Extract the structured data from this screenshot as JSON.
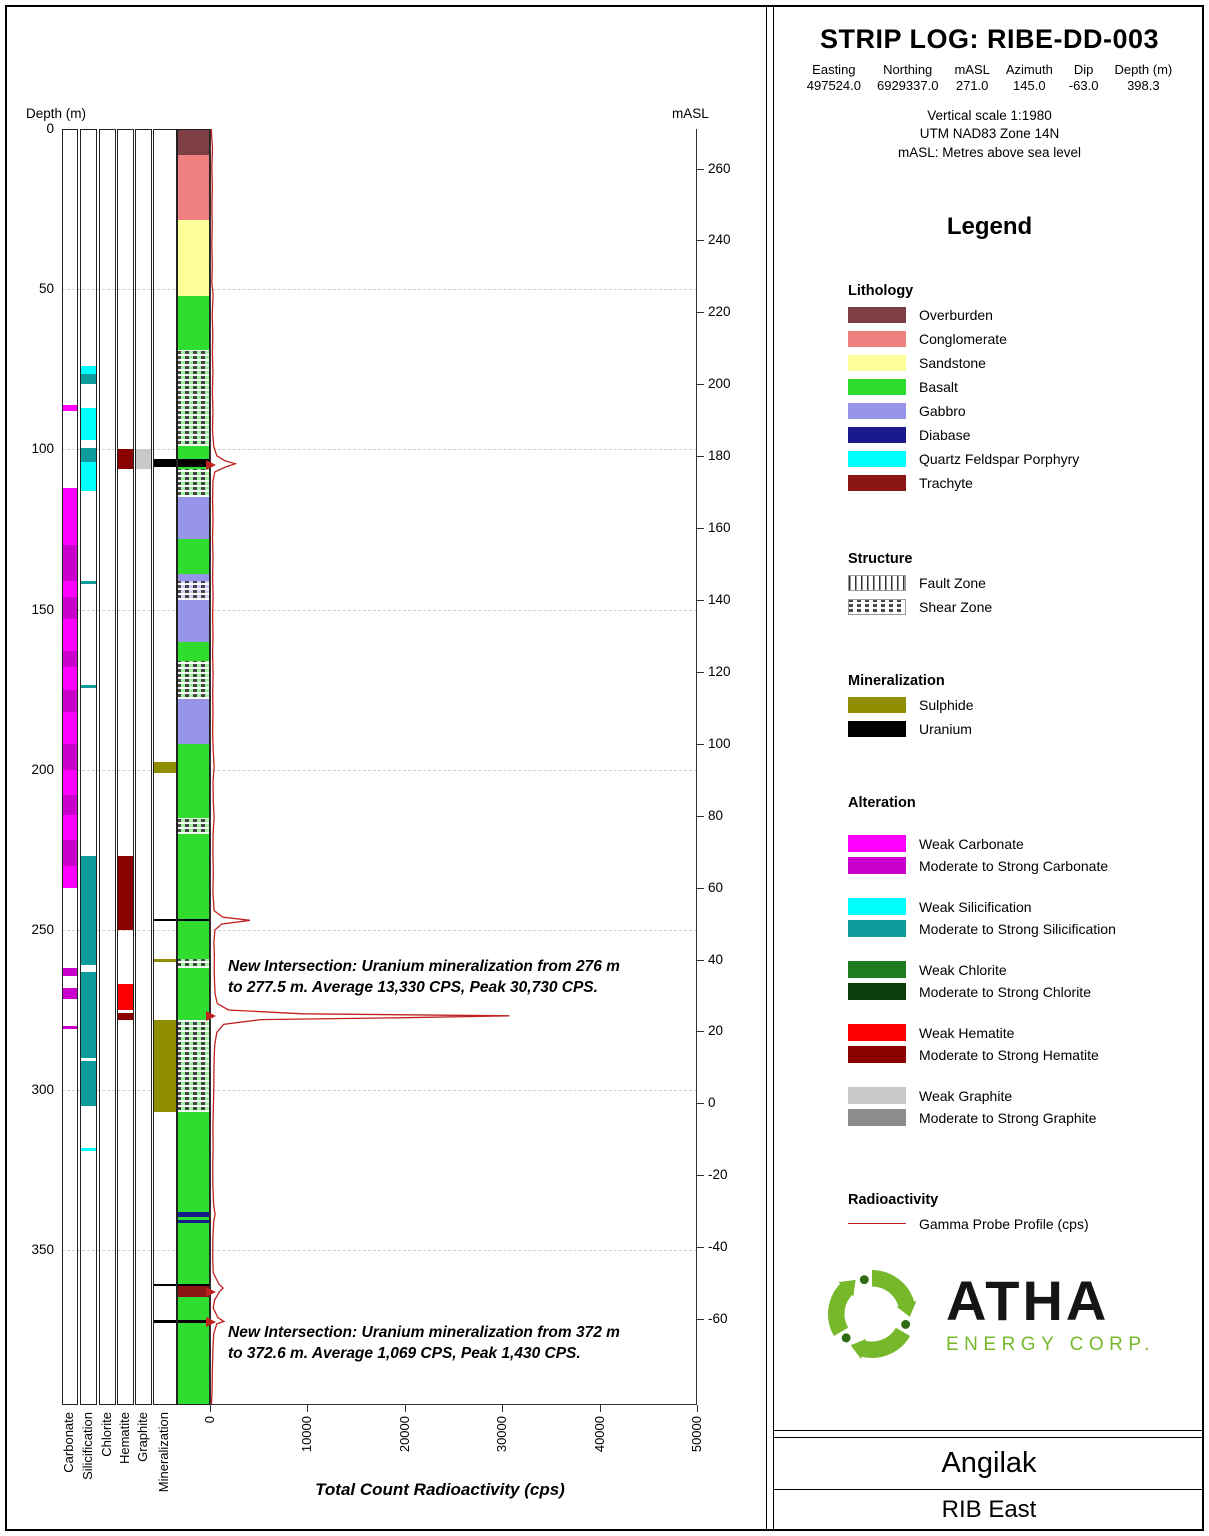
{
  "header": {
    "title": "STRIP LOG: RIBE-DD-003",
    "collar": [
      {
        "name": "Easting",
        "value": "497524.0"
      },
      {
        "name": "Northing",
        "value": "6929337.0"
      },
      {
        "name": "mASL",
        "value": "271.0"
      },
      {
        "name": "Azimuth",
        "value": "145.0"
      },
      {
        "name": "Dip",
        "value": "-63.0"
      },
      {
        "name": "Depth (m)",
        "value": "398.3"
      }
    ],
    "notes": [
      "Vertical scale 1:1980",
      "UTM NAD83 Zone 14N",
      "mASL: Metres above sea level"
    ]
  },
  "legend": {
    "title": "Legend",
    "lithology": {
      "title": "Lithology",
      "items": [
        {
          "label": "Overburden",
          "color": "#7E3F44"
        },
        {
          "label": "Conglomerate",
          "color": "#F08080"
        },
        {
          "label": "Sandstone",
          "color": "#FFFF99"
        },
        {
          "label": "Basalt",
          "color": "#2FDD2F"
        },
        {
          "label": "Gabbro",
          "color": "#9795E8"
        },
        {
          "label": "Diabase",
          "color": "#1A1A8F"
        },
        {
          "label": "Quartz Feldspar Porphyry",
          "color": "#00FFFF"
        },
        {
          "label": "Trachyte",
          "color": "#8B1515"
        }
      ]
    },
    "structure": {
      "title": "Structure",
      "items": [
        {
          "label": "Fault Zone",
          "pattern": "fault"
        },
        {
          "label": "Shear Zone",
          "pattern": "shear"
        }
      ]
    },
    "mineralization": {
      "title": "Mineralization",
      "items": [
        {
          "label": "Sulphide",
          "color": "#8E8E00"
        },
        {
          "label": "Uranium",
          "color": "#000000"
        }
      ]
    },
    "alteration": {
      "title": "Alteration",
      "groups": [
        {
          "name": "Carbonate",
          "weak": {
            "label": "Weak Carbonate",
            "color": "#FF00FF"
          },
          "strong": {
            "label": "Moderate to Strong Carbonate",
            "color": "#CC00CC"
          }
        },
        {
          "name": "Silicification",
          "weak": {
            "label": "Weak Silicification",
            "color": "#00FFFF"
          },
          "strong": {
            "label": "Moderate to Strong Silicification",
            "color": "#0E9B9B"
          }
        },
        {
          "name": "Chlorite",
          "weak": {
            "label": "Weak Chlorite",
            "color": "#1E7B1E"
          },
          "strong": {
            "label": "Moderate to Strong Chlorite",
            "color": "#0A3D0A"
          }
        },
        {
          "name": "Hematite",
          "weak": {
            "label": "Weak Hematite",
            "color": "#FF0000"
          },
          "strong": {
            "label": "Moderate to Strong Hematite",
            "color": "#8B0000"
          }
        },
        {
          "name": "Graphite",
          "weak": {
            "label": "Weak Graphite",
            "color": "#C8C8C8"
          },
          "strong": {
            "label": "Moderate to Strong Graphite",
            "color": "#8C8C8C"
          }
        }
      ]
    },
    "radioactivity": {
      "title": "Radioactivity",
      "items": [
        {
          "label": "Gamma Probe Profile (cps)",
          "color": "#C02020"
        }
      ]
    }
  },
  "logo": {
    "text": "ATHA",
    "subtext": "ENERGY CORP.",
    "green": "#76B82A"
  },
  "footer": {
    "project": "Angilak",
    "area": "RIB East"
  },
  "chart_data": {
    "type": "strip-log",
    "depth_axis": {
      "label": "Depth (m)",
      "min": 0,
      "max": 398.3,
      "ticks": [
        0,
        50,
        100,
        150,
        200,
        250,
        300,
        350
      ]
    },
    "masl_axis": {
      "label": "mASL",
      "surface_masl": 271.0,
      "dip_deg": -63.0,
      "ticks": [
        260,
        240,
        220,
        200,
        180,
        160,
        140,
        120,
        100,
        80,
        60,
        40,
        20,
        0,
        -20,
        -40,
        -60
      ]
    },
    "radioactivity_axis": {
      "label": "Total Count Radioactivity (cps)",
      "min": 0,
      "max": 50000,
      "ticks": [
        0,
        10000,
        20000,
        30000,
        40000,
        50000
      ]
    },
    "columns": [
      "Carbonate",
      "Silicification",
      "Chlorite",
      "Hematite",
      "Graphite",
      "Mineralization"
    ],
    "lithology_intervals": [
      {
        "from": 0,
        "to": 8,
        "unit": "Overburden"
      },
      {
        "from": 8,
        "to": 28.5,
        "unit": "Conglomerate"
      },
      {
        "from": 28.5,
        "to": 52,
        "unit": "Sandstone"
      },
      {
        "from": 52,
        "to": 115,
        "unit": "Basalt"
      },
      {
        "from": 115,
        "to": 128,
        "unit": "Gabbro"
      },
      {
        "from": 128,
        "to": 139,
        "unit": "Basalt"
      },
      {
        "from": 139,
        "to": 160,
        "unit": "Gabbro"
      },
      {
        "from": 160,
        "to": 178,
        "unit": "Basalt"
      },
      {
        "from": 178,
        "to": 192,
        "unit": "Gabbro"
      },
      {
        "from": 192,
        "to": 338,
        "unit": "Basalt"
      },
      {
        "from": 338,
        "to": 339.5,
        "unit": "Diabase"
      },
      {
        "from": 339.5,
        "to": 340.5,
        "unit": "Basalt"
      },
      {
        "from": 340.5,
        "to": 341.5,
        "unit": "Diabase"
      },
      {
        "from": 341.5,
        "to": 361.3,
        "unit": "Basalt"
      },
      {
        "from": 361.3,
        "to": 364.5,
        "unit": "Trachyte"
      },
      {
        "from": 364.5,
        "to": 398.3,
        "unit": "Basalt"
      }
    ],
    "structure_intervals": [
      {
        "from": 69,
        "to": 99,
        "type": "Shear Zone"
      },
      {
        "from": 106,
        "to": 115,
        "type": "Shear Zone"
      },
      {
        "from": 141,
        "to": 147,
        "type": "Shear Zone"
      },
      {
        "from": 166,
        "to": 178,
        "type": "Shear Zone"
      },
      {
        "from": 215,
        "to": 220,
        "type": "Shear Zone"
      },
      {
        "from": 259,
        "to": 262,
        "type": "Shear Zone"
      },
      {
        "from": 278,
        "to": 307,
        "type": "Shear Zone"
      }
    ],
    "alteration": {
      "Carbonate": [
        {
          "from": 86,
          "to": 88,
          "intensity": "weak"
        },
        {
          "from": 112,
          "to": 130,
          "intensity": "weak"
        },
        {
          "from": 130,
          "to": 141,
          "intensity": "strong"
        },
        {
          "from": 141,
          "to": 146,
          "intensity": "weak"
        },
        {
          "from": 146,
          "to": 153,
          "intensity": "strong"
        },
        {
          "from": 153,
          "to": 163,
          "intensity": "weak"
        },
        {
          "from": 163,
          "to": 168,
          "intensity": "strong"
        },
        {
          "from": 168,
          "to": 175,
          "intensity": "weak"
        },
        {
          "from": 175,
          "to": 182,
          "intensity": "strong"
        },
        {
          "from": 182,
          "to": 192,
          "intensity": "weak"
        },
        {
          "from": 192,
          "to": 200,
          "intensity": "strong"
        },
        {
          "from": 200,
          "to": 208,
          "intensity": "weak"
        },
        {
          "from": 208,
          "to": 214,
          "intensity": "strong"
        },
        {
          "from": 214,
          "to": 222,
          "intensity": "weak"
        },
        {
          "from": 222,
          "to": 230,
          "intensity": "strong"
        },
        {
          "from": 230,
          "to": 237,
          "intensity": "weak"
        },
        {
          "from": 262,
          "to": 264.5,
          "intensity": "strong"
        },
        {
          "from": 268,
          "to": 271.5,
          "intensity": "strong"
        },
        {
          "from": 280,
          "to": 281,
          "intensity": "strong"
        }
      ],
      "Silicification": [
        {
          "from": 74,
          "to": 76.5,
          "intensity": "weak"
        },
        {
          "from": 76.5,
          "to": 79.5,
          "intensity": "strong"
        },
        {
          "from": 87,
          "to": 97,
          "intensity": "weak"
        },
        {
          "from": 99.5,
          "to": 104,
          "intensity": "strong"
        },
        {
          "from": 104,
          "to": 113,
          "intensity": "weak"
        },
        {
          "from": 141,
          "to": 142,
          "intensity": "strong"
        },
        {
          "from": 173.5,
          "to": 174.5,
          "intensity": "strong"
        },
        {
          "from": 227,
          "to": 261,
          "intensity": "strong"
        },
        {
          "from": 263,
          "to": 290,
          "intensity": "strong"
        },
        {
          "from": 291,
          "to": 305,
          "intensity": "strong"
        },
        {
          "from": 318,
          "to": 319,
          "intensity": "weak"
        }
      ],
      "Chlorite": [],
      "Hematite": [
        {
          "from": 100,
          "to": 106,
          "intensity": "strong"
        },
        {
          "from": 227,
          "to": 250,
          "intensity": "strong"
        },
        {
          "from": 267,
          "to": 275,
          "intensity": "weak"
        },
        {
          "from": 276,
          "to": 278,
          "intensity": "strong"
        }
      ],
      "Graphite": [
        {
          "from": 100,
          "to": 106,
          "intensity": "weak"
        }
      ]
    },
    "mineralization_intervals": [
      {
        "from": 103,
        "to": 105.5,
        "type": "Uranium"
      },
      {
        "from": 197.5,
        "to": 201,
        "type": "Sulphide"
      },
      {
        "from": 246.5,
        "to": 247.3,
        "type": "Uranium"
      },
      {
        "from": 259,
        "to": 260,
        "type": "Sulphide"
      },
      {
        "from": 278,
        "to": 307,
        "type": "Sulphide"
      },
      {
        "from": 360.5,
        "to": 361.3,
        "type": "Uranium"
      },
      {
        "from": 371.8,
        "to": 372.8,
        "type": "Uranium"
      }
    ],
    "gamma_markers": [
      105,
      277,
      363,
      372.3
    ],
    "gamma_profile": [
      [
        0,
        120
      ],
      [
        6,
        260
      ],
      [
        12,
        180
      ],
      [
        18,
        240
      ],
      [
        24,
        190
      ],
      [
        30,
        230
      ],
      [
        36,
        180
      ],
      [
        42,
        240
      ],
      [
        48,
        200
      ],
      [
        52,
        320
      ],
      [
        58,
        230
      ],
      [
        64,
        290
      ],
      [
        70,
        250
      ],
      [
        76,
        300
      ],
      [
        82,
        250
      ],
      [
        88,
        300
      ],
      [
        94,
        260
      ],
      [
        99,
        380
      ],
      [
        102,
        700
      ],
      [
        103.5,
        1500
      ],
      [
        104.5,
        2600
      ],
      [
        105.5,
        1600
      ],
      [
        107,
        500
      ],
      [
        110,
        300
      ],
      [
        116,
        270
      ],
      [
        122,
        310
      ],
      [
        128,
        260
      ],
      [
        134,
        310
      ],
      [
        140,
        270
      ],
      [
        146,
        320
      ],
      [
        152,
        270
      ],
      [
        158,
        310
      ],
      [
        164,
        270
      ],
      [
        170,
        320
      ],
      [
        176,
        280
      ],
      [
        182,
        310
      ],
      [
        188,
        270
      ],
      [
        194,
        330
      ],
      [
        199,
        420
      ],
      [
        204,
        310
      ],
      [
        210,
        340
      ],
      [
        215,
        420
      ],
      [
        220,
        320
      ],
      [
        226,
        300
      ],
      [
        232,
        340
      ],
      [
        238,
        300
      ],
      [
        244,
        420
      ],
      [
        246,
        1300
      ],
      [
        247,
        4100
      ],
      [
        248.2,
        1200
      ],
      [
        250,
        500
      ],
      [
        254,
        400
      ],
      [
        258,
        450
      ],
      [
        262,
        430
      ],
      [
        266,
        460
      ],
      [
        270,
        520
      ],
      [
        273,
        750
      ],
      [
        275,
        1900
      ],
      [
        276.2,
        9500
      ],
      [
        276.8,
        30730
      ],
      [
        277.4,
        20000
      ],
      [
        278,
        5200
      ],
      [
        279.5,
        1400
      ],
      [
        282,
        700
      ],
      [
        286,
        480
      ],
      [
        290,
        430
      ],
      [
        295,
        400
      ],
      [
        300,
        390
      ],
      [
        306,
        340
      ],
      [
        312,
        300
      ],
      [
        318,
        320
      ],
      [
        324,
        280
      ],
      [
        330,
        300
      ],
      [
        336,
        380
      ],
      [
        338.8,
        520
      ],
      [
        341,
        380
      ],
      [
        346,
        300
      ],
      [
        352,
        280
      ],
      [
        357,
        330
      ],
      [
        360.5,
        900
      ],
      [
        361.8,
        1350
      ],
      [
        363,
        950
      ],
      [
        365.5,
        480
      ],
      [
        368,
        330
      ],
      [
        371,
        800
      ],
      [
        372.2,
        1430
      ],
      [
        373,
        700
      ],
      [
        376,
        380
      ],
      [
        381,
        300
      ],
      [
        386,
        260
      ],
      [
        391,
        230
      ],
      [
        395,
        190
      ],
      [
        398,
        140
      ]
    ],
    "annotations": [
      {
        "at_depth_m": 258.5,
        "lines": [
          "New Intersection: Uranium mineralization from 276 m",
          "to 277.5 m. Average 13,330 CPS, Peak 30,730 CPS."
        ]
      },
      {
        "at_depth_m": 372.8,
        "lines": [
          "New Intersection: Uranium mineralization from 372 m",
          "to 372.6 m. Average 1,069 CPS, Peak 1,430 CPS."
        ]
      }
    ]
  }
}
